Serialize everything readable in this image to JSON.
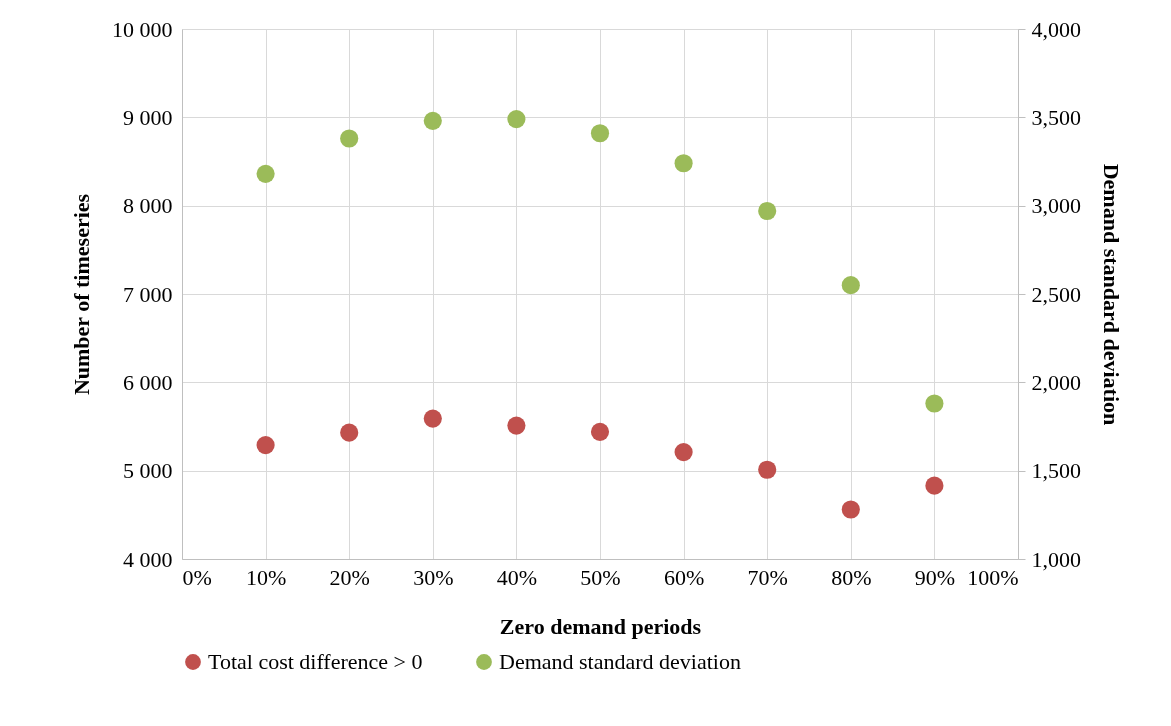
{
  "chart_data": {
    "type": "scatter",
    "xlabel": "Zero demand periods",
    "ylabel": "Number of timeseries",
    "y2label": "Demand standard deviation",
    "x": [
      10,
      20,
      30,
      40,
      50,
      60,
      70,
      80,
      90
    ],
    "xlim": [
      0,
      100
    ],
    "xticks": [
      {
        "value": 0,
        "label": "0%"
      },
      {
        "value": 10,
        "label": "10%"
      },
      {
        "value": 20,
        "label": "20%"
      },
      {
        "value": 30,
        "label": "30%"
      },
      {
        "value": 40,
        "label": "40%"
      },
      {
        "value": 50,
        "label": "50%"
      },
      {
        "value": 60,
        "label": "60%"
      },
      {
        "value": 70,
        "label": "70%"
      },
      {
        "value": 80,
        "label": "80%"
      },
      {
        "value": 90,
        "label": "90%"
      },
      {
        "value": 100,
        "label": "100%"
      }
    ],
    "ylim": [
      4000,
      10000
    ],
    "yticks": [
      {
        "value": 4000,
        "label": "4 000"
      },
      {
        "value": 5000,
        "label": "5 000"
      },
      {
        "value": 6000,
        "label": "6 000"
      },
      {
        "value": 7000,
        "label": "7 000"
      },
      {
        "value": 8000,
        "label": "8 000"
      },
      {
        "value": 9000,
        "label": "9 000"
      },
      {
        "value": 10000,
        "label": "10 000"
      }
    ],
    "y2lim": [
      1000,
      4000
    ],
    "y2ticks": [
      {
        "value": 1000,
        "label": "1,000"
      },
      {
        "value": 1500,
        "label": "1,500"
      },
      {
        "value": 2000,
        "label": "2,000"
      },
      {
        "value": 2500,
        "label": "2,500"
      },
      {
        "value": 3000,
        "label": "3,000"
      },
      {
        "value": 3500,
        "label": "3,500"
      },
      {
        "value": 4000,
        "label": "4,000"
      }
    ],
    "series": [
      {
        "name": "Total cost difference > 0",
        "color": "#c0504d",
        "values": [
          5290,
          5430,
          5590,
          5510,
          5440,
          5210,
          5010,
          4560,
          4830
        ]
      },
      {
        "name": "Demand standard deviation",
        "color": "#9bbb59",
        "axis": "y2",
        "values": [
          3180,
          3380,
          3480,
          3490,
          3410,
          3240,
          2970,
          2550,
          1880
        ]
      }
    ],
    "grid": true,
    "legend": "bottom",
    "marker": "circle"
  }
}
